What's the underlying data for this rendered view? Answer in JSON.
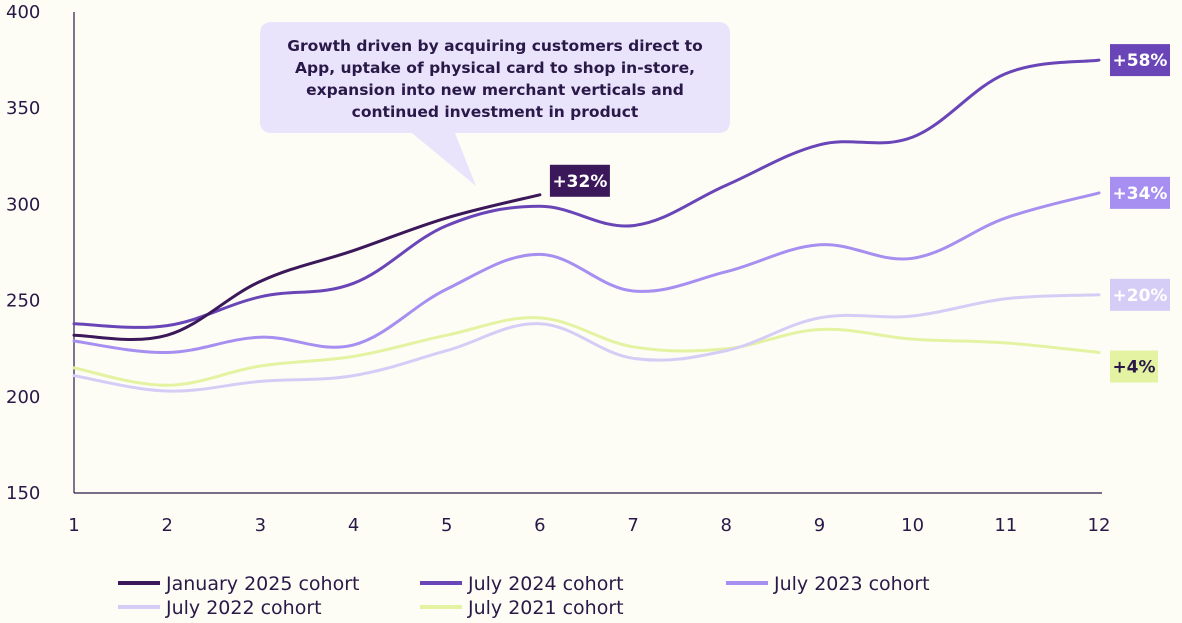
{
  "chart_data": {
    "type": "line",
    "x": [
      1,
      2,
      3,
      4,
      5,
      6,
      7,
      8,
      9,
      10,
      11,
      12
    ],
    "ylim": [
      150,
      400
    ],
    "yticks": [
      150,
      200,
      250,
      300,
      350,
      400
    ],
    "grid": false,
    "legend_position": "bottom",
    "series": [
      {
        "name": "January 2025 cohort",
        "color": "#3b1859",
        "values": [
          232,
          232,
          260,
          276,
          293,
          305,
          null,
          null,
          null,
          null,
          null,
          null
        ],
        "end_label": "+32%",
        "label_text_color": "#ffffff"
      },
      {
        "name": "July 2024 cohort",
        "color": "#6a45b8",
        "values": [
          238,
          237,
          252,
          259,
          289,
          299,
          289,
          310,
          331,
          335,
          368,
          375
        ],
        "end_label": "+58%",
        "label_text_color": "#ffffff"
      },
      {
        "name": "July 2023 cohort",
        "color": "#a68ff0",
        "values": [
          229,
          223,
          231,
          227,
          256,
          274,
          255,
          265,
          279,
          272,
          293,
          306
        ],
        "end_label": "+34%",
        "label_text_color": "#ffffff"
      },
      {
        "name": "July 2022 cohort",
        "color": "#d6cdf7",
        "values": [
          211,
          203,
          208,
          211,
          224,
          238,
          220,
          224,
          241,
          242,
          251,
          253
        ],
        "end_label": "+20%",
        "label_text_color": "#ffffff"
      },
      {
        "name": "July 2021 cohort",
        "color": "#e3f3a2",
        "values": [
          215,
          206,
          216,
          221,
          232,
          241,
          226,
          225,
          235,
          230,
          228,
          223
        ],
        "end_label": "+4%",
        "label_text_color": "#2a1948"
      }
    ],
    "annotation": {
      "lines": [
        "Growth driven by acquiring customers direct to",
        "App, uptake of physical card to shop in-store,",
        "expansion into new merchant verticals and",
        "continued investment in product"
      ],
      "background": "#e9e4fb"
    }
  }
}
